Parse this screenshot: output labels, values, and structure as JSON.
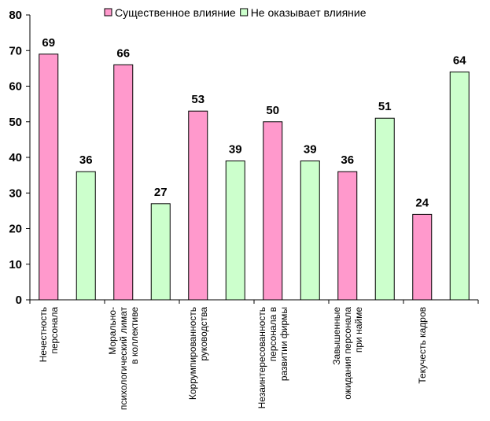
{
  "chart_data": {
    "type": "bar",
    "title": "",
    "xlabel": "",
    "ylabel": "",
    "ylim": [
      0,
      80
    ],
    "yticks": [
      0,
      10,
      20,
      30,
      40,
      50,
      60,
      70,
      80
    ],
    "grid": false,
    "legend_position": "top",
    "categories": [
      [
        "Нечестность",
        "персонала"
      ],
      [
        "Морально-",
        "психологический лимат",
        "в коллективе"
      ],
      [
        "Коррумпированность",
        "руководства"
      ],
      [
        "Незаинтересованность",
        "персонала в",
        "развитии фирмы"
      ],
      [
        "Завышенные",
        "ожидания персонала",
        "при найме"
      ],
      [
        "Текучесть кадров"
      ]
    ],
    "series": [
      {
        "name": "Существенное влияние",
        "color": "#ff99cc",
        "values": [
          69,
          66,
          53,
          50,
          36,
          24
        ]
      },
      {
        "name": "Не оказывает влияние",
        "color": "#ccffcc",
        "values": [
          36,
          27,
          39,
          39,
          51,
          64
        ]
      }
    ]
  }
}
